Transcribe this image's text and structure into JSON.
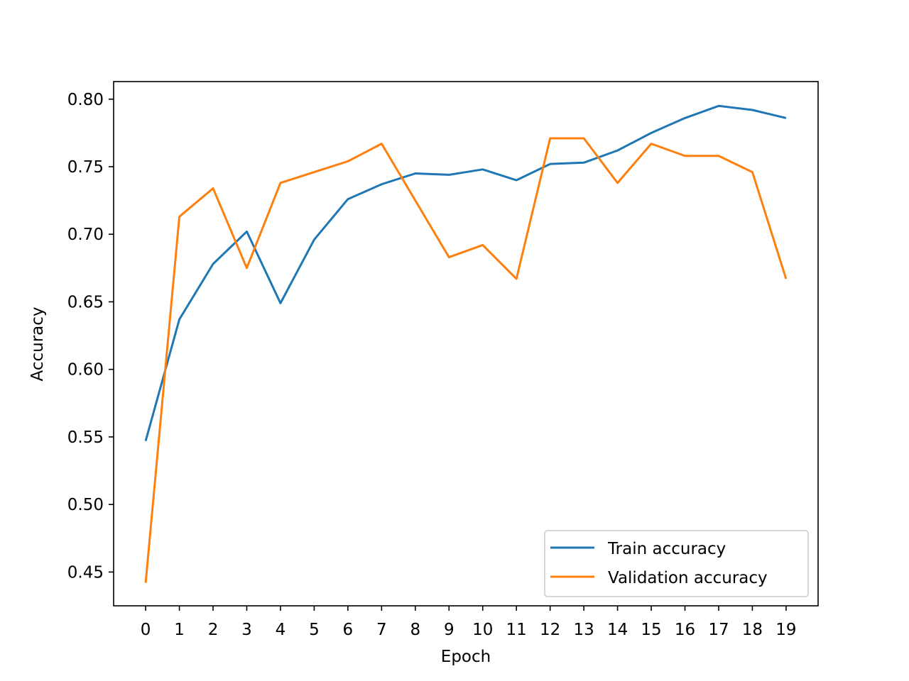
{
  "chart_data": {
    "type": "line",
    "title": "",
    "xlabel": "Epoch",
    "ylabel": "Accuracy",
    "x": [
      0,
      1,
      2,
      3,
      4,
      5,
      6,
      7,
      8,
      9,
      10,
      11,
      12,
      13,
      14,
      15,
      16,
      17,
      18,
      19
    ],
    "xlim": [
      -0.95,
      19.95
    ],
    "ylim": [
      0.425,
      0.813
    ],
    "yticks": [
      "0.45",
      "0.50",
      "0.55",
      "0.60",
      "0.65",
      "0.70",
      "0.75",
      "0.80"
    ],
    "xticks": [
      "0",
      "1",
      "2",
      "3",
      "4",
      "5",
      "6",
      "7",
      "8",
      "9",
      "10",
      "11",
      "12",
      "13",
      "14",
      "15",
      "16",
      "17",
      "18",
      "19"
    ],
    "grid": false,
    "legend_position": "lower-right",
    "series": [
      {
        "name": "Train accuracy",
        "color": "#1f77b4",
        "values": [
          0.547,
          0.637,
          0.678,
          0.702,
          0.649,
          0.696,
          0.726,
          0.737,
          0.745,
          0.744,
          0.748,
          0.74,
          0.752,
          0.753,
          0.762,
          0.775,
          0.786,
          0.795,
          0.792,
          0.786
        ]
      },
      {
        "name": "Validation accuracy",
        "color": "#ff7f0e",
        "values": [
          0.442,
          0.713,
          0.734,
          0.675,
          0.738,
          0.746,
          0.754,
          0.767,
          0.725,
          0.683,
          0.692,
          0.667,
          0.771,
          0.771,
          0.738,
          0.767,
          0.758,
          0.758,
          0.746,
          0.667
        ]
      }
    ]
  }
}
